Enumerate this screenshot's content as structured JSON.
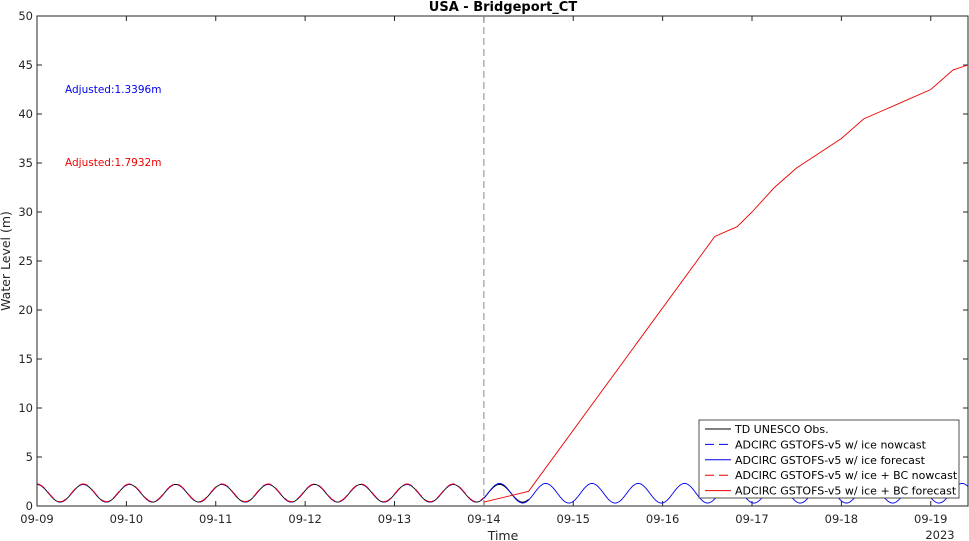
{
  "chart_data": {
    "type": "line",
    "title": "USA - Bridgeport_CT",
    "xlabel": "Time",
    "ylabel": "Water Level (m)",
    "year_label": "2023",
    "ylim": [
      0,
      50
    ],
    "yticks": [
      0,
      5,
      10,
      15,
      20,
      25,
      30,
      35,
      40,
      45,
      50
    ],
    "xlim": [
      "2023-09-09 00:00",
      "2023-09-19 10:00"
    ],
    "xtick_labels": [
      "09-09",
      "09-10",
      "09-11",
      "09-12",
      "09-13",
      "09-14",
      "09-15",
      "09-16",
      "09-17",
      "09-18",
      "09-19"
    ],
    "nowcast_forecast_boundary": "2023-09-14 00:00",
    "grid": false,
    "legend_position": "bottom-right",
    "annotations": [
      {
        "text": "Adjusted:1.3396m",
        "color": "#0000ee"
      },
      {
        "text": "Adjusted:1.7932m",
        "color": "#ee0000"
      }
    ],
    "series": [
      {
        "name": "TD UNESCO Obs.",
        "color": "#000000",
        "style": "solid",
        "x": [
          "2023-09-09 00:00",
          "2023-09-14 00:00"
        ],
        "y": [
          2.2,
          0.5
        ],
        "tidal": {
          "mean": 1.3,
          "amplitude": 0.9,
          "period_h": 12.42,
          "range": [
            "2023-09-09 00:00",
            "2023-09-14 12:00"
          ]
        }
      },
      {
        "name": "ADCIRC GSTOFS-v5 w/ ice nowcast",
        "color": "#0000ee",
        "style": "dashed",
        "tidal": {
          "mean": 1.3,
          "amplitude": 0.9,
          "period_h": 12.42,
          "range": [
            "2023-09-09 00:00",
            "2023-09-14 00:00"
          ]
        }
      },
      {
        "name": "ADCIRC GSTOFS-v5 w/ ice forecast",
        "color": "#0000ee",
        "style": "solid",
        "tidal": {
          "mean": 1.3,
          "amplitude": 1.0,
          "period_h": 12.42,
          "range": [
            "2023-09-14 00:00",
            "2023-09-19 10:00"
          ]
        }
      },
      {
        "name": "ADCIRC GSTOFS-v5 w/ ice + BC nowcast",
        "color": "#ee0000",
        "style": "dashed",
        "tidal": {
          "mean": 1.35,
          "amplitude": 0.9,
          "period_h": 12.42,
          "range": [
            "2023-09-09 00:00",
            "2023-09-14 00:00"
          ]
        }
      },
      {
        "name": "ADCIRC GSTOFS-v5 w/ ice + BC forecast",
        "color": "#ee0000",
        "style": "solid",
        "x": [
          "2023-09-14 00:00",
          "2023-09-14 12:00",
          "2023-09-16 14:00",
          "2023-09-16 20:00",
          "2023-09-17 00:00",
          "2023-09-17 06:00",
          "2023-09-17 12:00",
          "2023-09-17 18:00",
          "2023-09-18 00:00",
          "2023-09-18 06:00",
          "2023-09-18 12:00",
          "2023-09-18 18:00",
          "2023-09-19 00:00",
          "2023-09-19 06:00",
          "2023-09-19 10:00"
        ],
        "y": [
          0.4,
          1.5,
          27.5,
          28.5,
          30.0,
          32.5,
          34.5,
          36.0,
          37.5,
          39.5,
          40.5,
          41.5,
          42.5,
          44.5,
          45.0
        ]
      }
    ]
  }
}
